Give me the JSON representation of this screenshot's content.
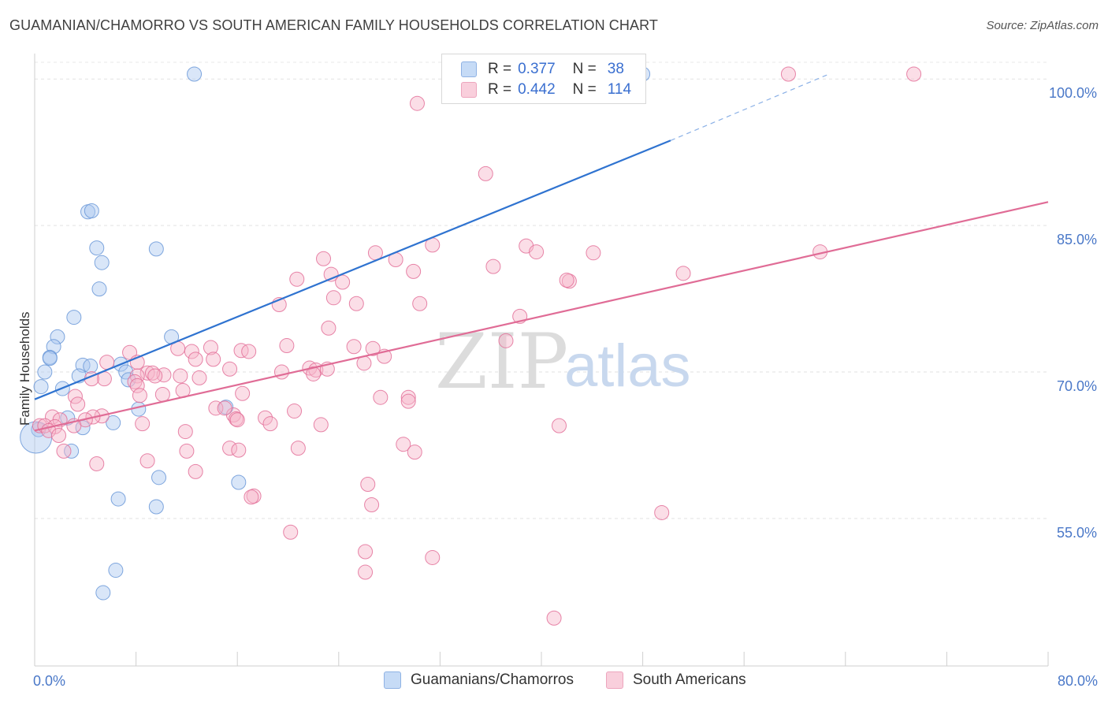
{
  "title": "GUAMANIAN/CHAMORRO VS SOUTH AMERICAN FAMILY HOUSEHOLDS CORRELATION CHART",
  "source": "Source: ZipAtlas.com",
  "watermark": {
    "zip": "ZIP",
    "atlas": "atlas"
  },
  "legend": {
    "r_label": "R =",
    "n_label": "N =",
    "series": [
      {
        "name": "Guamanians/Chamorros",
        "r": "0.377",
        "n": "38",
        "fill": "#aac8f0",
        "stroke": "#6a98d8"
      },
      {
        "name": "South Americans",
        "r": "0.442",
        "n": "114",
        "fill": "#f6b6ca",
        "stroke": "#e890ae"
      }
    ]
  },
  "chart_data": {
    "type": "scatter",
    "title": "GUAMANIAN/CHAMORRO VS SOUTH AMERICAN FAMILY HOUSEHOLDS CORRELATION CHART",
    "xlabel": "",
    "ylabel": "Family Households",
    "xlim": [
      0,
      80
    ],
    "ylim": [
      39.9,
      102.6
    ],
    "x_tick_labels": [
      {
        "value": 0,
        "label": "0.0%"
      },
      {
        "value": 80,
        "label": "80.0%"
      }
    ],
    "y_tick_labels": [
      {
        "value": 55,
        "label": "55.0%"
      },
      {
        "value": 70,
        "label": "70.0%"
      },
      {
        "value": 85,
        "label": "85.0%"
      },
      {
        "value": 100,
        "label": "100.0%"
      }
    ],
    "gridlines": [
      55,
      70,
      85,
      100
    ],
    "series": [
      {
        "name": "Guamanians/Chamorros",
        "color": "#6a98d8",
        "fill": "#aac8f0",
        "trend": {
          "x0": 0,
          "y0": 67.2,
          "x1": 50.2,
          "y1": 93.7,
          "dash_to_x": 62.7,
          "dash_to_y": 100.5
        },
        "points": [
          [
            12.6,
            100.5
          ],
          [
            48,
            100.5
          ],
          [
            4.2,
            86.4
          ],
          [
            4.5,
            86.5
          ],
          [
            4.9,
            82.7
          ],
          [
            9.6,
            82.6
          ],
          [
            5.3,
            81.2
          ],
          [
            5.1,
            78.5
          ],
          [
            3.1,
            75.6
          ],
          [
            1.8,
            73.6
          ],
          [
            10.8,
            73.6
          ],
          [
            1.5,
            72.6
          ],
          [
            1.2,
            71.5
          ],
          [
            1.2,
            71.4
          ],
          [
            3.8,
            70.7
          ],
          [
            4.4,
            70.6
          ],
          [
            6.8,
            70.8
          ],
          [
            7.2,
            70.0
          ],
          [
            0.8,
            70.0
          ],
          [
            3.5,
            69.6
          ],
          [
            7.4,
            69.2
          ],
          [
            0.5,
            68.5
          ],
          [
            2.2,
            68.3
          ],
          [
            8.2,
            66.2
          ],
          [
            15.1,
            66.4
          ],
          [
            2.6,
            65.3
          ],
          [
            6.2,
            64.8
          ],
          [
            3.8,
            64.3
          ],
          [
            0.3,
            64.1
          ],
          [
            2.9,
            61.9
          ],
          [
            9.8,
            59.2
          ],
          [
            16.1,
            58.7
          ],
          [
            6.6,
            57.0
          ],
          [
            9.6,
            56.2
          ],
          [
            6.4,
            49.7
          ],
          [
            5.4,
            47.4
          ],
          [
            0.1,
            63.3
          ]
        ]
      },
      {
        "name": "South Americans",
        "color": "#e37099",
        "fill": "#f6b6ca",
        "trend": {
          "x0": 0,
          "y0": 64.0,
          "x1": 80,
          "y1": 87.4
        },
        "points": [
          [
            59.5,
            100.5
          ],
          [
            69.4,
            100.5
          ],
          [
            30.2,
            97.5
          ],
          [
            35.6,
            90.3
          ],
          [
            22.8,
            81.6
          ],
          [
            38.8,
            82.9
          ],
          [
            31.4,
            83.0
          ],
          [
            26.9,
            82.2
          ],
          [
            28.5,
            81.5
          ],
          [
            29.9,
            80.3
          ],
          [
            36.2,
            80.8
          ],
          [
            39.6,
            82.3
          ],
          [
            44.1,
            82.2
          ],
          [
            62,
            82.3
          ],
          [
            20.7,
            79.5
          ],
          [
            23.4,
            80.0
          ],
          [
            42.2,
            79.3
          ],
          [
            51.2,
            80.1
          ],
          [
            24.3,
            79.2
          ],
          [
            42,
            79.4
          ],
          [
            19.3,
            76.9
          ],
          [
            23.6,
            77.6
          ],
          [
            25.4,
            77.0
          ],
          [
            30.4,
            77.0
          ],
          [
            38.3,
            75.7
          ],
          [
            23.2,
            74.5
          ],
          [
            37.2,
            73.2
          ],
          [
            13.9,
            72.5
          ],
          [
            16.3,
            72.2
          ],
          [
            19.9,
            72.7
          ],
          [
            25.2,
            72.6
          ],
          [
            26.7,
            72.4
          ],
          [
            27.6,
            71.6
          ],
          [
            11.3,
            72.4
          ],
          [
            12.4,
            72.1
          ],
          [
            7.5,
            72.0
          ],
          [
            16.9,
            72.1
          ],
          [
            12.7,
            71.3
          ],
          [
            14.1,
            71.3
          ],
          [
            5.7,
            71.0
          ],
          [
            8.1,
            71.0
          ],
          [
            21.7,
            70.4
          ],
          [
            22.2,
            70.2
          ],
          [
            23.1,
            70.3
          ],
          [
            26.0,
            70.9
          ],
          [
            15.4,
            70.3
          ],
          [
            19.5,
            70.0
          ],
          [
            22.0,
            69.8
          ],
          [
            10.2,
            69.7
          ],
          [
            8.9,
            69.9
          ],
          [
            9.3,
            69.9
          ],
          [
            11.5,
            69.6
          ],
          [
            8.1,
            69.6
          ],
          [
            13,
            69.4
          ],
          [
            9.5,
            69.6
          ],
          [
            5.5,
            69.3
          ],
          [
            4.5,
            69.3
          ],
          [
            7.9,
            69.0
          ],
          [
            8.1,
            68.6
          ],
          [
            11.7,
            68.1
          ],
          [
            16.4,
            67.8
          ],
          [
            8.3,
            67.6
          ],
          [
            10.1,
            67.7
          ],
          [
            3.2,
            67.5
          ],
          [
            27.3,
            67.4
          ],
          [
            29.5,
            67.4
          ],
          [
            3.4,
            66.7
          ],
          [
            14.3,
            66.3
          ],
          [
            20.5,
            66.0
          ],
          [
            15.7,
            65.6
          ],
          [
            5.3,
            65.5
          ],
          [
            4.6,
            65.4
          ],
          [
            1.4,
            65.4
          ],
          [
            4.0,
            65.1
          ],
          [
            2.0,
            65.1
          ],
          [
            15.9,
            65.2
          ],
          [
            16.0,
            65.1
          ],
          [
            18.2,
            65.3
          ],
          [
            8.5,
            64.7
          ],
          [
            3.1,
            64.5
          ],
          [
            18.6,
            64.7
          ],
          [
            22.6,
            64.6
          ],
          [
            0.4,
            64.5
          ],
          [
            0.8,
            64.5
          ],
          [
            1.6,
            64.4
          ],
          [
            1.1,
            64.0
          ],
          [
            41.4,
            64.5
          ],
          [
            11.9,
            63.9
          ],
          [
            1.9,
            63.5
          ],
          [
            29.1,
            62.6
          ],
          [
            15.4,
            62.2
          ],
          [
            16.1,
            62.0
          ],
          [
            12.0,
            61.9
          ],
          [
            20.8,
            62.2
          ],
          [
            30.0,
            61.8
          ],
          [
            2.3,
            61.9
          ],
          [
            8.9,
            60.9
          ],
          [
            4.9,
            60.6
          ],
          [
            12.7,
            59.8
          ],
          [
            26.3,
            58.5
          ],
          [
            17.3,
            57.3
          ],
          [
            17.1,
            57.2
          ],
          [
            26.6,
            56.4
          ],
          [
            49.5,
            55.6
          ],
          [
            20.2,
            53.6
          ],
          [
            26.1,
            51.6
          ],
          [
            31.4,
            51.0
          ],
          [
            26.1,
            49.5
          ],
          [
            41.0,
            44.8
          ],
          [
            15.0,
            66.3
          ],
          [
            29.5,
            67.0
          ]
        ]
      }
    ]
  }
}
